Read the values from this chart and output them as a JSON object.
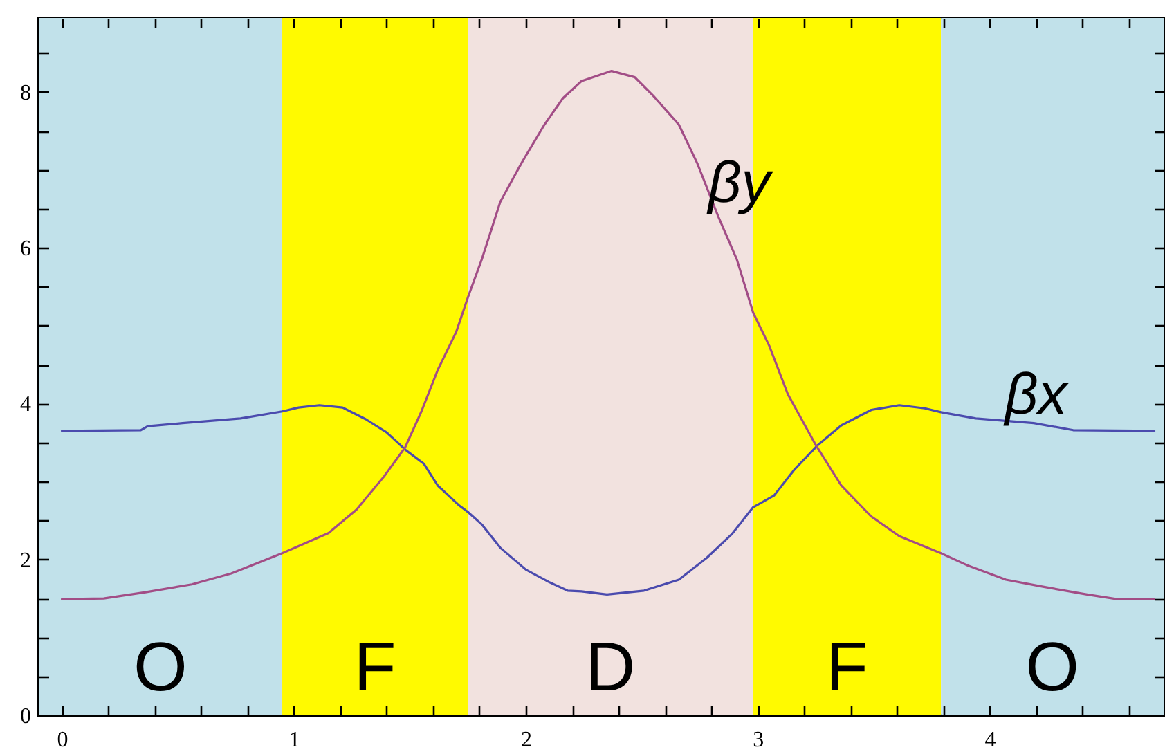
{
  "chart_data": {
    "type": "line",
    "xlim": [
      -0.1,
      4.75
    ],
    "ylim": [
      0,
      8.95
    ],
    "xticks": [
      0,
      {
        "value": 0.2,
        "label": null
      },
      {
        "value": 0.4,
        "label": null
      },
      {
        "value": 0.6,
        "label": null
      },
      {
        "value": 0.8,
        "label": null
      },
      1,
      {
        "value": 1.2,
        "label": null
      },
      {
        "value": 1.4,
        "label": null
      },
      {
        "value": 1.6,
        "label": null
      },
      {
        "value": 1.8,
        "label": null
      },
      2,
      {
        "value": 2.2,
        "label": null
      },
      {
        "value": 2.4,
        "label": null
      },
      {
        "value": 2.6,
        "label": null
      },
      {
        "value": 2.8,
        "label": null
      },
      3,
      {
        "value": 3.2,
        "label": null
      },
      {
        "value": 3.4,
        "label": null
      },
      {
        "value": 3.6,
        "label": null
      },
      {
        "value": 3.8,
        "label": null
      },
      4,
      {
        "value": 4.2,
        "label": null
      },
      {
        "value": 4.4,
        "label": null
      },
      {
        "value": 4.6,
        "label": null
      }
    ],
    "yticks": [
      0,
      {
        "value": 0.5,
        "label": null
      },
      {
        "value": 1,
        "label": null
      },
      {
        "value": 1.5,
        "label": null
      },
      2,
      {
        "value": 2.5,
        "label": null
      },
      {
        "value": 3,
        "label": null
      },
      {
        "value": 3.5,
        "label": null
      },
      4,
      {
        "value": 4.5,
        "label": null
      },
      {
        "value": 5,
        "label": null
      },
      {
        "value": 5.5,
        "label": null
      },
      6,
      {
        "value": 6.5,
        "label": null
      },
      {
        "value": 7,
        "label": null
      },
      {
        "value": 7.5,
        "label": null
      },
      8,
      {
        "value": 8.5,
        "label": null
      }
    ],
    "bands": [
      {
        "axis": "x",
        "from": -0.1,
        "to": 0.95,
        "label": "O",
        "color": "#c1e1ea"
      },
      {
        "axis": "x",
        "from": 0.95,
        "to": 1.75,
        "label": "F",
        "color": "#fffa00"
      },
      {
        "axis": "x",
        "from": 1.75,
        "to": 2.98,
        "label": "D",
        "color": "#f2e2df"
      },
      {
        "axis": "x",
        "from": 2.98,
        "to": 3.79,
        "label": "F",
        "color": "#fffa00"
      },
      {
        "axis": "x",
        "from": 3.79,
        "to": 4.75,
        "label": "O",
        "color": "#c1e1ea"
      }
    ],
    "series": [
      {
        "name": "βx",
        "color": "#4b4bae",
        "x": [
          0,
          0.34,
          0.37,
          0.52,
          0.77,
          0.95,
          1.02,
          1.11,
          1.21,
          1.31,
          1.4,
          1.48,
          1.56,
          1.62,
          1.71,
          1.75,
          1.81,
          1.89,
          2.0,
          2.1,
          2.18,
          2.24,
          2.35,
          2.51,
          2.66,
          2.78,
          2.89,
          2.98,
          3.07,
          3.16,
          3.26,
          3.36,
          3.49,
          3.61,
          3.72,
          3.79,
          3.94,
          4.19,
          4.36,
          4.71
        ],
        "values": [
          3.65,
          3.66,
          3.71,
          3.75,
          3.81,
          3.9,
          3.95,
          3.98,
          3.95,
          3.8,
          3.63,
          3.41,
          3.23,
          2.95,
          2.7,
          2.61,
          2.45,
          2.15,
          1.87,
          1.71,
          1.6,
          1.59,
          1.55,
          1.6,
          1.74,
          2.02,
          2.33,
          2.67,
          2.82,
          3.16,
          3.47,
          3.72,
          3.92,
          3.98,
          3.94,
          3.89,
          3.81,
          3.75,
          3.66,
          3.65
        ]
      },
      {
        "name": "βy",
        "color": "#a24d86",
        "x": [
          0,
          0.18,
          0.36,
          0.56,
          0.73,
          0.95,
          1.15,
          1.27,
          1.39,
          1.48,
          1.55,
          1.62,
          1.7,
          1.75,
          1.81,
          1.89,
          1.98,
          2.08,
          2.16,
          2.24,
          2.37,
          2.47,
          2.55,
          2.66,
          2.74,
          2.83,
          2.91,
          2.98,
          3.05,
          3.13,
          3.25,
          3.36,
          3.49,
          3.61,
          3.79,
          3.9,
          4.07,
          4.23,
          4.42,
          4.55,
          4.71
        ],
        "values": [
          1.49,
          1.5,
          1.58,
          1.68,
          1.82,
          2.08,
          2.34,
          2.64,
          3.07,
          3.44,
          3.9,
          4.43,
          4.92,
          5.36,
          5.85,
          6.59,
          7.08,
          7.58,
          7.92,
          8.14,
          8.27,
          8.19,
          7.95,
          7.58,
          7.08,
          6.4,
          5.85,
          5.17,
          4.74,
          4.12,
          3.47,
          2.95,
          2.55,
          2.3,
          2.08,
          1.93,
          1.74,
          1.65,
          1.55,
          1.49,
          1.49
        ]
      }
    ]
  }
}
